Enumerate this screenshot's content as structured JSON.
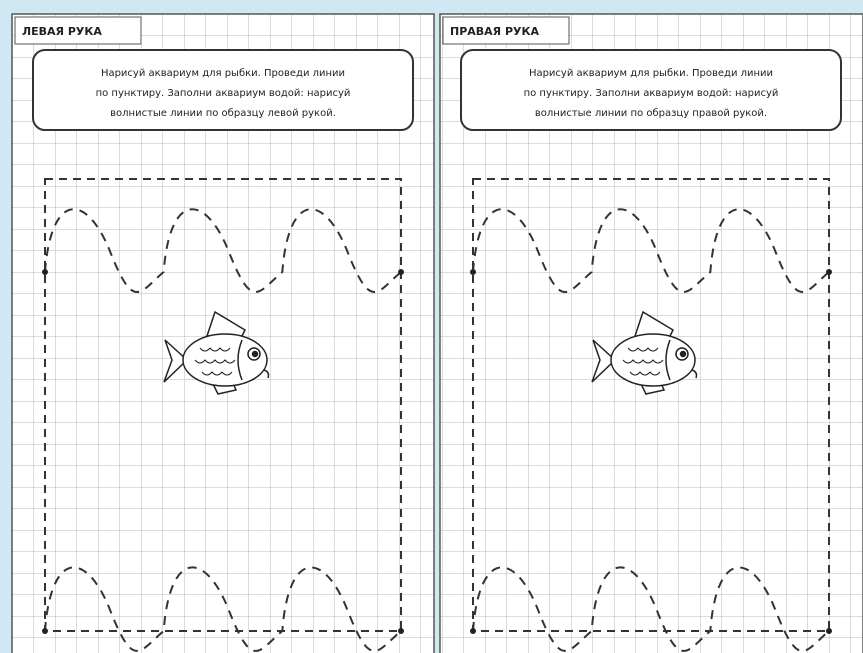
{
  "pages": [
    {
      "title": "ЛЕВАЯ РУКА",
      "instruction": [
        "Нарисуй аквариум для рыбки. Проведи линии",
        "по пунктиру. Заполни аквариум водой: нарисуй",
        "волнистые линии по образцу левой рукой."
      ]
    },
    {
      "title": "ПРАВАЯ РУКА",
      "instruction": [
        "Нарисуй аквариум для рыбки. Проведи линии",
        "по пунктиру. Заполни аквариум водой: нарисуй",
        "волнистые линии по образцу правой рукой."
      ]
    }
  ]
}
